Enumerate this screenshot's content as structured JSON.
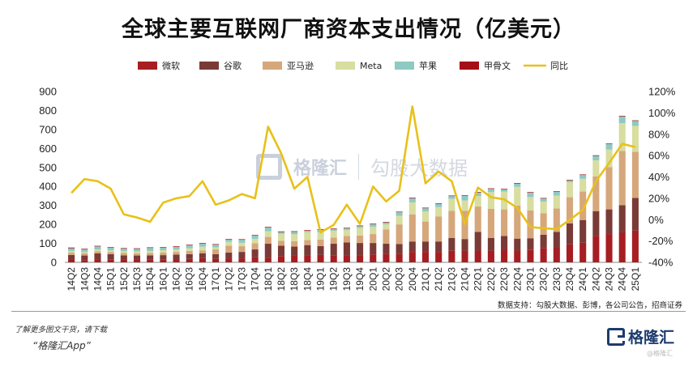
{
  "header": {
    "title": "全球主要互联网厂商资本支出情况（亿美元）"
  },
  "watermark": {
    "brand": "格隆汇",
    "partner": "勾股大数据"
  },
  "footer": {
    "source": "数据支持：勾股大数据、彭博，各公司公告，招商证券",
    "promo_line1": "了解更多图文干货，请下载",
    "promo_line2": "“格隆汇App”",
    "brand_name": "格隆汇",
    "brand_sub": "@格隆汇"
  },
  "chart_data": {
    "type": "bar",
    "stacked": true,
    "title": "全球主要互联网厂商资本支出情况（亿美元）",
    "categories": [
      "14Q2",
      "14Q3",
      "14Q4",
      "15Q1",
      "15Q2",
      "15Q3",
      "15Q4",
      "16Q1",
      "16Q2",
      "16Q3",
      "16Q4",
      "17Q1",
      "17Q2",
      "17Q3",
      "17Q4",
      "18Q1",
      "18Q2",
      "18Q3",
      "18Q4",
      "19Q1",
      "19Q2",
      "19Q3",
      "19Q4",
      "20Q1",
      "20Q2",
      "20Q3",
      "20Q4",
      "21Q1",
      "21Q2",
      "21Q3",
      "21Q4",
      "22Q1",
      "22Q2",
      "22Q3",
      "22Q4",
      "23Q1",
      "23Q2",
      "23Q3",
      "23Q4",
      "24Q1",
      "24Q2",
      "24Q3",
      "24Q4",
      "25Q1"
    ],
    "x_tick_labels": [
      "14Q2",
      "",
      "14Q4",
      "",
      "15Q2",
      "",
      "15Q4",
      "",
      "16Q2",
      "",
      "16Q4",
      "",
      "17Q2",
      "",
      "17Q4",
      "",
      "18Q2",
      "",
      "18Q4",
      "",
      "19Q2",
      "",
      "19Q4",
      "",
      "20Q2",
      "",
      "20Q4",
      "",
      "21Q2",
      "",
      "21Q4",
      "",
      "22Q2",
      "",
      "22Q4",
      "",
      "23Q2",
      "",
      "23Q4",
      "",
      "24Q2",
      "",
      "24Q4",
      ""
    ],
    "x_tick_labels_full": [
      "14Q2",
      "14Q3",
      "14Q4",
      "15Q1",
      "15Q2",
      "15Q3",
      "15Q4",
      "16Q1",
      "16Q2",
      "16Q3",
      "16Q4",
      "17Q1",
      "17Q2",
      "17Q3",
      "17Q4",
      "18Q1",
      "18Q2",
      "18Q3",
      "18Q4",
      "19Q1",
      "19Q2",
      "19Q3",
      "19Q4",
      "20Q1",
      "20Q2",
      "20Q3",
      "20Q4",
      "21Q1",
      "21Q2",
      "21Q3",
      "21Q4",
      "22Q1",
      "22Q2",
      "22Q3",
      "22Q4",
      "23Q1",
      "23Q2",
      "23Q3",
      "23Q4",
      "24Q1",
      "24Q2",
      "24Q3",
      "24Q4",
      "25Q1"
    ],
    "y_left": {
      "min": 0,
      "max": 900,
      "ticks": [
        0,
        100,
        200,
        300,
        400,
        500,
        600,
        700,
        800,
        900
      ]
    },
    "y_right": {
      "min": -40,
      "max": 120,
      "ticks": [
        -40,
        -20,
        0,
        20,
        40,
        60,
        80,
        100,
        120
      ],
      "unit": "%"
    },
    "series": [
      {
        "name": "微软",
        "color": "#a61e22",
        "values": [
          15,
          12,
          13,
          14,
          13,
          13,
          16,
          14,
          15,
          18,
          22,
          18,
          21,
          21,
          26,
          25,
          33,
          36,
          38,
          39,
          37,
          38,
          38,
          42,
          43,
          43,
          55,
          55,
          55,
          61,
          60,
          62,
          60,
          66,
          62,
          65,
          76,
          79,
          95,
          103,
          139,
          149,
          158,
          167
        ]
      },
      {
        "name": "谷歌",
        "color": "#7a3b37",
        "values": [
          24,
          24,
          34,
          29,
          24,
          23,
          21,
          24,
          26,
          25,
          26,
          25,
          31,
          34,
          42,
          73,
          55,
          47,
          53,
          47,
          61,
          67,
          64,
          60,
          55,
          54,
          55,
          55,
          55,
          68,
          63,
          98,
          69,
          73,
          63,
          62,
          69,
          81,
          110,
          120,
          131,
          130,
          143,
          172
        ]
      },
      {
        "name": "亚马逊",
        "color": "#d6a77b",
        "values": [
          12,
          12,
          12,
          12,
          12,
          12,
          12,
          13,
          14,
          17,
          15,
          25,
          36,
          30,
          33,
          36,
          26,
          28,
          26,
          34,
          32,
          34,
          39,
          47,
          76,
          103,
          143,
          105,
          131,
          142,
          149,
          134,
          153,
          140,
          174,
          147,
          114,
          124,
          138,
          150,
          183,
          223,
          286,
          243
        ]
      },
      {
        "name": "Meta",
        "color": "#d8dda0",
        "values": [
          9,
          6,
          8,
          8,
          10,
          9,
          11,
          13,
          12,
          14,
          20,
          11,
          20,
          18,
          23,
          30,
          36,
          37,
          43,
          39,
          36,
          31,
          41,
          38,
          26,
          45,
          63,
          53,
          50,
          63,
          54,
          55,
          88,
          93,
          99,
          70,
          61,
          68,
          79,
          67,
          84,
          92,
          146,
          137
        ]
      },
      {
        "name": "苹果",
        "color": "#8fc9c4",
        "values": [
          14,
          15,
          17,
          14,
          13,
          14,
          16,
          13,
          15,
          16,
          16,
          14,
          12,
          16,
          17,
          20,
          10,
          13,
          7,
          13,
          9,
          9,
          9,
          14,
          10,
          19,
          22,
          17,
          17,
          15,
          24,
          19,
          17,
          12,
          17,
          23,
          16,
          20,
          10,
          20,
          24,
          29,
          36,
          26
        ]
      },
      {
        "name": "甲骨文",
        "color": "#a50f18",
        "values": [
          4,
          3,
          3,
          3,
          3,
          3,
          3,
          3,
          3,
          3,
          3,
          3,
          3,
          3,
          3,
          3,
          3,
          3,
          3,
          3,
          3,
          3,
          3,
          3,
          3,
          3,
          3,
          3,
          3,
          3,
          3,
          3,
          3,
          3,
          3,
          3,
          3,
          3,
          3,
          3,
          3,
          3,
          3,
          3
        ]
      }
    ],
    "line_series": {
      "name": "同比",
      "color": "#e8c119",
      "axis": "right",
      "values": [
        25,
        38,
        36,
        29,
        5,
        2,
        -2,
        16,
        20,
        22,
        36,
        14,
        18,
        24,
        20,
        87,
        62,
        29,
        40,
        -12,
        -5,
        14,
        -4,
        31,
        17,
        27,
        106,
        34,
        45,
        36,
        -4,
        30,
        21,
        19,
        11,
        -7,
        -8,
        -9,
        0,
        9,
        36,
        53,
        71,
        68
      ]
    },
    "legend": {
      "position": "top"
    },
    "grid": false
  }
}
